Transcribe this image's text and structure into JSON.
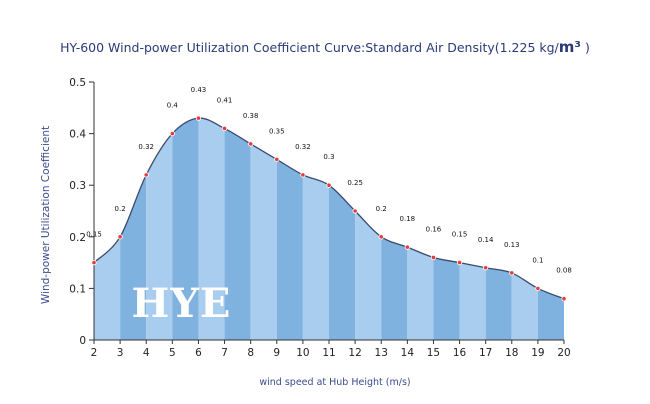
{
  "chart_data": {
    "type": "area",
    "title_main": "HY-600 Wind-power Utilization Coefficient  Curve:Standard Air Density(1.225 kg/",
    "title_unit": "m³",
    "title_end": " )",
    "xlabel": "wind speed at Hub Height  (m/s)",
    "ylabel": "Wind-power Utilization Coefficient",
    "x": [
      2,
      3,
      4,
      5,
      6,
      7,
      8,
      9,
      10,
      11,
      12,
      13,
      14,
      15,
      16,
      17,
      18,
      19,
      20
    ],
    "values": [
      0.15,
      0.2,
      0.32,
      0.4,
      0.43,
      0.41,
      0.38,
      0.35,
      0.32,
      0.3,
      0.25,
      0.2,
      0.18,
      0.16,
      0.15,
      0.14,
      0.13,
      0.1,
      0.08
    ],
    "labels": [
      "0.15",
      "0.2",
      "0.32",
      "0.4",
      "0.43",
      "0.41",
      "0.38",
      "0.35",
      "0.32",
      "0.3",
      "0.25",
      "0.2",
      "0.18",
      "0.16",
      "0.15",
      "0.14",
      "0.13",
      "0.1",
      "0.08"
    ],
    "yticks": [
      "0",
      "0.1",
      "0.2",
      "0.3",
      "0.4",
      "0.5"
    ],
    "xlim": [
      2,
      20
    ],
    "ylim": [
      0,
      0.5
    ],
    "grid": false,
    "colors": {
      "band_light": "#a9cdee",
      "band_dark": "#7fb2df",
      "line": "#3a4a6e",
      "marker": "#e83a3a",
      "axis": "#333333"
    },
    "watermark": "HYE"
  }
}
